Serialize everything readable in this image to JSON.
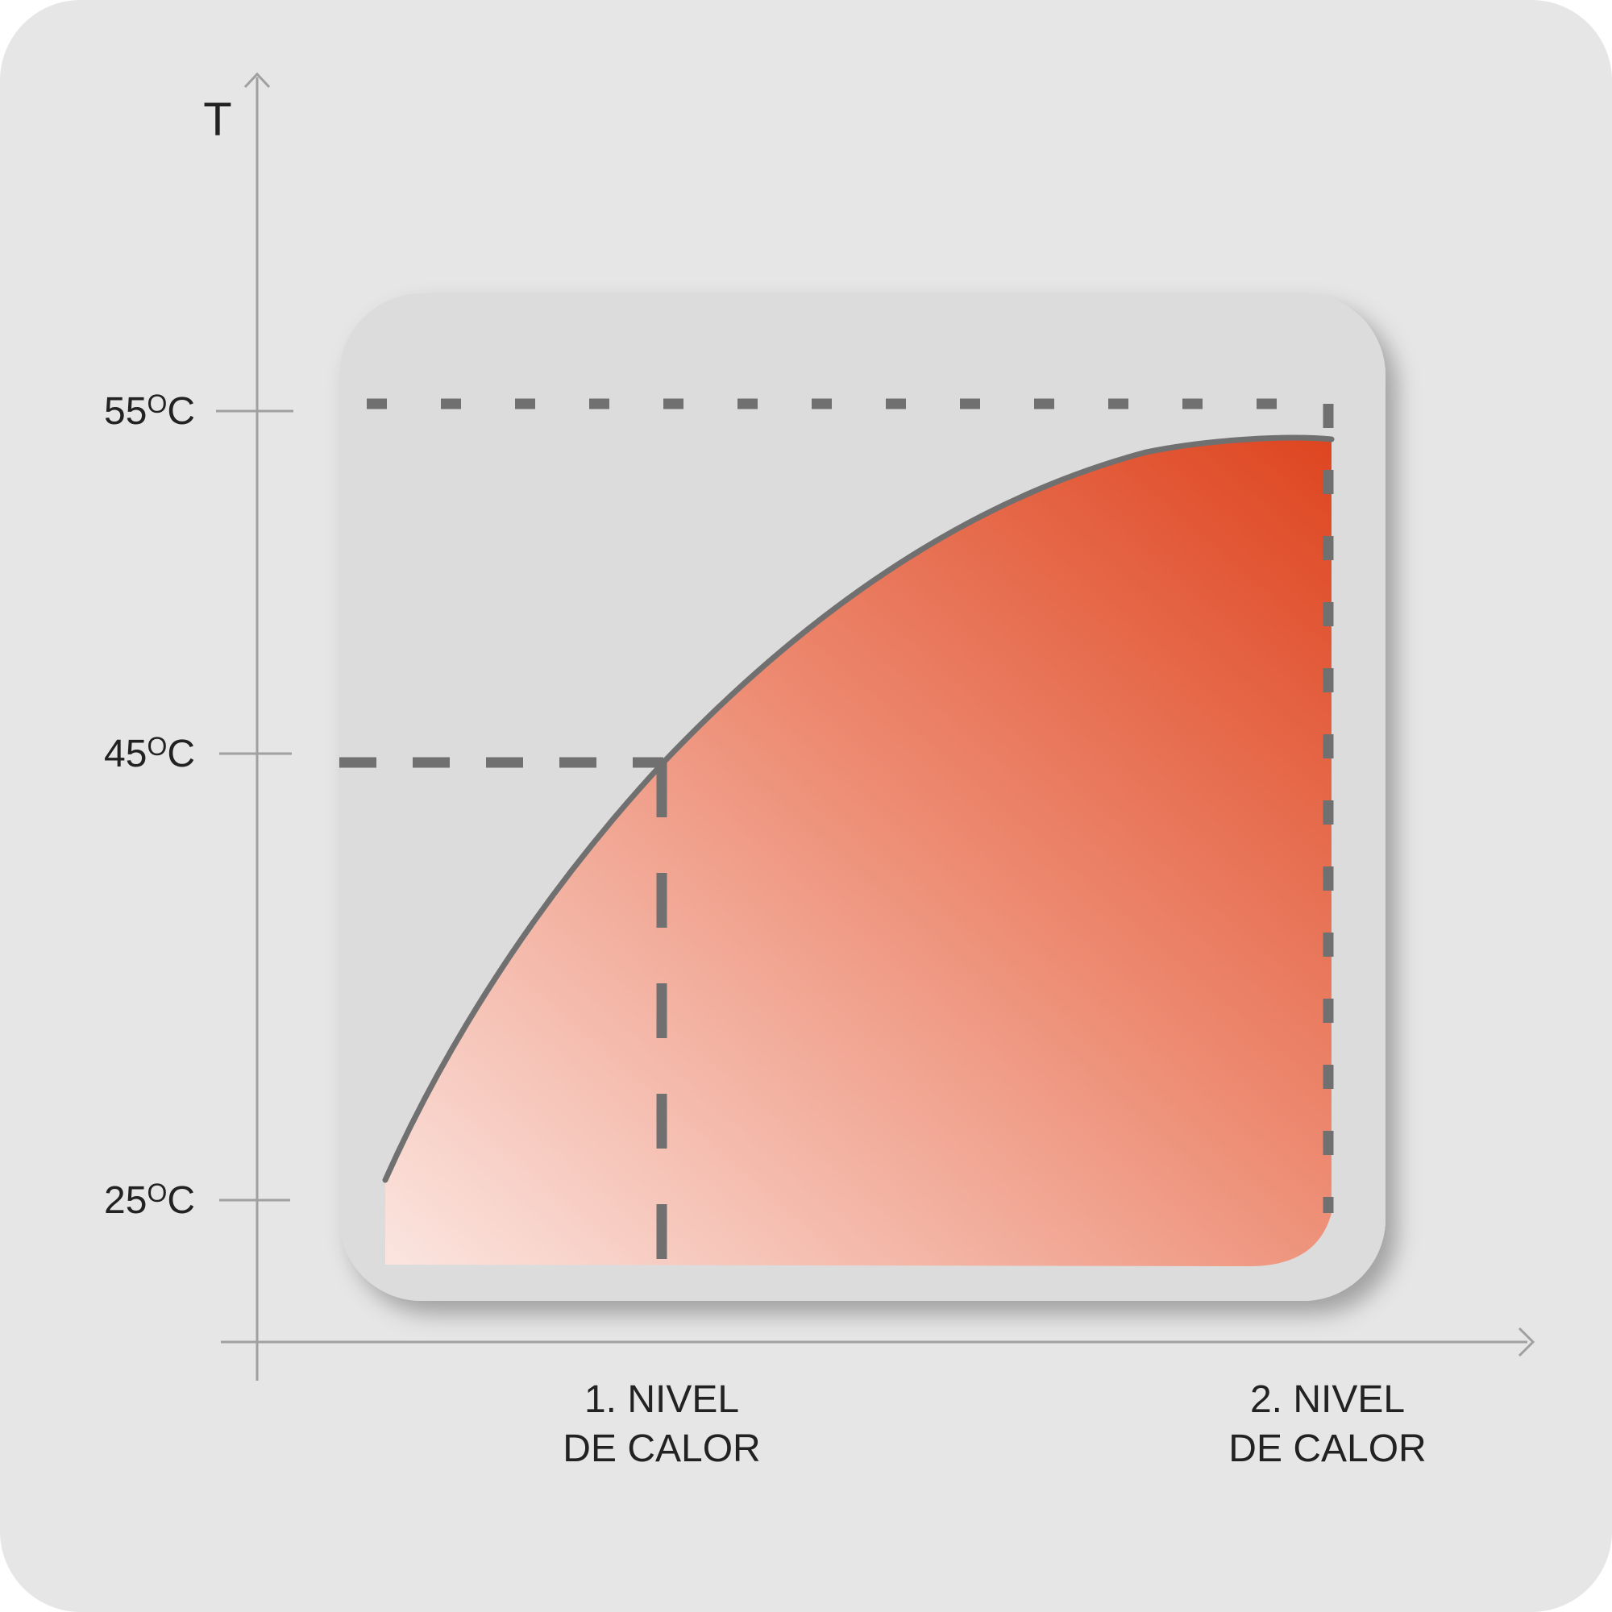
{
  "axis_label": "T",
  "y_labels": [
    {
      "number": "55",
      "sup": "O",
      "unit": "C"
    },
    {
      "number": "45",
      "sup": "O",
      "unit": "C"
    },
    {
      "number": "25",
      "sup": "O",
      "unit": "C"
    }
  ],
  "x_labels": [
    {
      "lines": [
        "1. NIVEL",
        "DE CALOR"
      ]
    },
    {
      "lines": [
        "2. NIVEL",
        "DE CALOR"
      ]
    }
  ]
}
